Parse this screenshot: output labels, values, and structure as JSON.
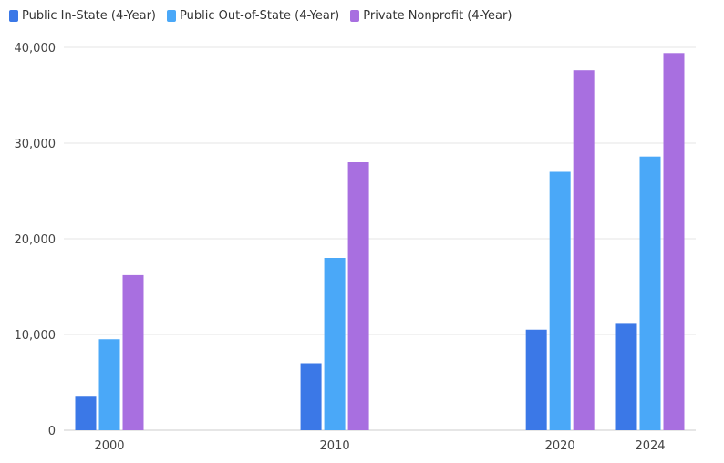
{
  "chart_data": {
    "type": "bar",
    "categories": [
      "2000",
      "2010",
      "2020",
      "2024"
    ],
    "x_values": [
      2000,
      2010,
      2020,
      2024
    ],
    "series": [
      {
        "name": "Public In-State (4-Year)",
        "color": "#3b78e7",
        "values": [
          3500,
          7000,
          10500,
          11200
        ]
      },
      {
        "name": "Public Out-of-State (4-Year)",
        "color": "#4aa8f8",
        "values": [
          9500,
          18000,
          27000,
          28600
        ]
      },
      {
        "name": "Private Nonprofit (4-Year)",
        "color": "#a86fe0",
        "values": [
          16200,
          28000,
          37600,
          39400
        ]
      }
    ],
    "ylim": [
      0,
      40000
    ],
    "yticks": [
      "0",
      "10,000",
      "20,000",
      "30,000",
      "40,000"
    ],
    "ytick_values": [
      0,
      10000,
      20000,
      30000,
      40000
    ],
    "grid": true,
    "legend_position": "top-left",
    "title": "",
    "xlabel": "",
    "ylabel": ""
  }
}
